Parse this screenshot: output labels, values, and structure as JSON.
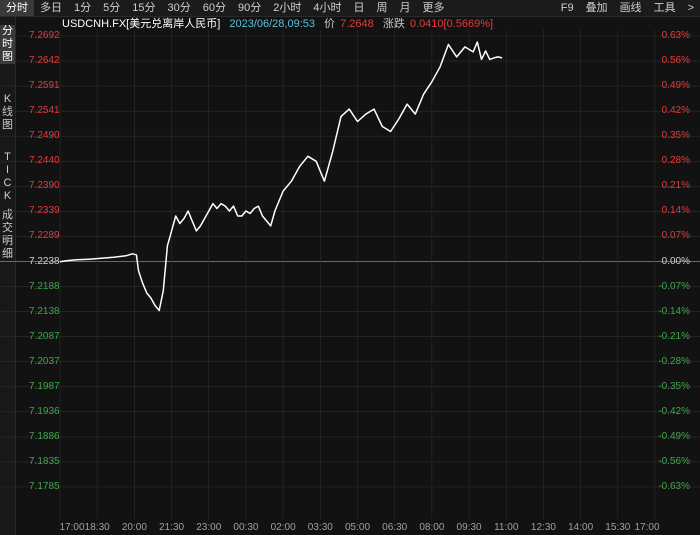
{
  "toolbar": {
    "tabs": [
      "分时",
      "多日",
      "1分",
      "5分",
      "15分",
      "30分",
      "60分",
      "90分",
      "2小时",
      "4小时",
      "日",
      "周",
      "月",
      "更多"
    ],
    "tools": [
      "F9",
      "叠加",
      "画线",
      "工具",
      ">"
    ]
  },
  "sidebar": [
    "分时图",
    "K线图",
    "TICK",
    "成交明细"
  ],
  "info": {
    "symbol": "USDCNH.FX[美元兑离岸人民币]",
    "datetime": "2023/06/28,09:53",
    "price_label": "价",
    "price": "7.2648",
    "change_label": "涨跌",
    "change": "0.0410[0.5669%]"
  },
  "colors": {
    "background": "#121212",
    "line": "#ffffff",
    "up": "#e03c3c",
    "down": "#3fa64a",
    "neutral": "#d0d0d0",
    "cyan": "#56c2d6",
    "grid": "#2e2e2e"
  },
  "chart_data": {
    "type": "line",
    "y_ticks": [
      "7.2692",
      "7.2642",
      "7.2591",
      "7.2541",
      "7.2490",
      "7.2440",
      "7.2390",
      "7.2339",
      "7.2289",
      "7.2238",
      "7.2188",
      "7.2138",
      "7.2087",
      "7.2037",
      "7.1987",
      "7.1936",
      "7.1886",
      "7.1835",
      "7.1785"
    ],
    "pct_ticks": [
      "0.63%",
      "0.56%",
      "0.49%",
      "0.42%",
      "0.35%",
      "0.28%",
      "0.21%",
      "0.14%",
      "0.07%",
      "0.00%",
      "-0.07%",
      "-0.14%",
      "-0.21%",
      "-0.28%",
      "-0.35%",
      "-0.42%",
      "-0.49%",
      "-0.56%",
      "-0.63%"
    ],
    "x_ticks": [
      "17:00",
      "18:30",
      "20:00",
      "21:30",
      "23:00",
      "00:30",
      "02:00",
      "03:30",
      "05:00",
      "06:30",
      "08:00",
      "09:30",
      "11:00",
      "12:30",
      "14:00",
      "15:30",
      "17:00"
    ],
    "ylim": [
      7.1785,
      7.2692
    ],
    "x_minutes_range": [
      0,
      1440
    ],
    "x": [
      0,
      15,
      40,
      70,
      100,
      130,
      160,
      175,
      185,
      190,
      200,
      210,
      220,
      230,
      240,
      250,
      260,
      270,
      280,
      290,
      300,
      310,
      320,
      330,
      340,
      350,
      360,
      370,
      380,
      390,
      400,
      410,
      420,
      430,
      440,
      450,
      460,
      470,
      480,
      490,
      500,
      510,
      520,
      540,
      560,
      580,
      600,
      620,
      640,
      660,
      680,
      700,
      720,
      740,
      760,
      780,
      800,
      820,
      840,
      860,
      880,
      900,
      920,
      940,
      960,
      980,
      1000,
      1010,
      1020,
      1030,
      1040,
      1050,
      1060,
      1070
    ],
    "y": [
      7.2238,
      7.224,
      7.2242,
      7.2243,
      7.2245,
      7.2247,
      7.225,
      7.2254,
      7.2252,
      7.222,
      7.2195,
      7.2175,
      7.2165,
      7.215,
      7.214,
      7.218,
      7.227,
      7.23,
      7.233,
      7.2315,
      7.2325,
      7.234,
      7.232,
      7.23,
      7.231,
      7.2325,
      7.234,
      7.2355,
      7.2345,
      7.2355,
      7.235,
      7.234,
      7.235,
      7.233,
      7.233,
      7.234,
      7.2335,
      7.2345,
      7.235,
      7.233,
      7.232,
      7.231,
      7.234,
      7.238,
      7.24,
      7.243,
      7.245,
      7.244,
      7.24,
      7.246,
      7.253,
      7.2545,
      7.252,
      7.2535,
      7.2545,
      7.251,
      7.25,
      7.2525,
      7.2555,
      7.2535,
      7.2575,
      7.26,
      7.263,
      7.2675,
      7.265,
      7.267,
      7.266,
      7.268,
      7.2645,
      7.2662,
      7.2645,
      7.2648,
      7.265,
      7.2648
    ]
  }
}
